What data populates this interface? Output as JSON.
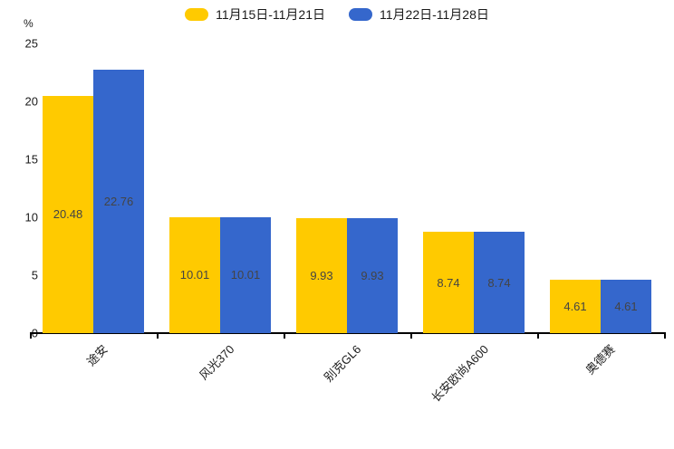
{
  "chart_data": {
    "type": "bar",
    "title": "",
    "ylabel": "%",
    "xlabel": "",
    "categories": [
      "途安",
      "风光370",
      "别克GL6",
      "长安欧尚A600",
      "奥德赛"
    ],
    "series": [
      {
        "name": "11月15日-11月21日",
        "color": "#FFCA00",
        "values": [
          20.48,
          10.01,
          9.93,
          8.74,
          4.61
        ]
      },
      {
        "name": "11月22日-11月28日",
        "color": "#3567CC",
        "values": [
          22.76,
          10.01,
          9.93,
          8.74,
          4.61
        ]
      }
    ],
    "y_ticks": [
      0,
      5,
      10,
      15,
      20,
      25
    ],
    "ylim": [
      0,
      25
    ],
    "grid": false,
    "legend_position": "top",
    "x_tick_label_rotation": 45,
    "value_label_decimals": 2,
    "value_label_color": "#444444",
    "axis_color": "#000000"
  }
}
